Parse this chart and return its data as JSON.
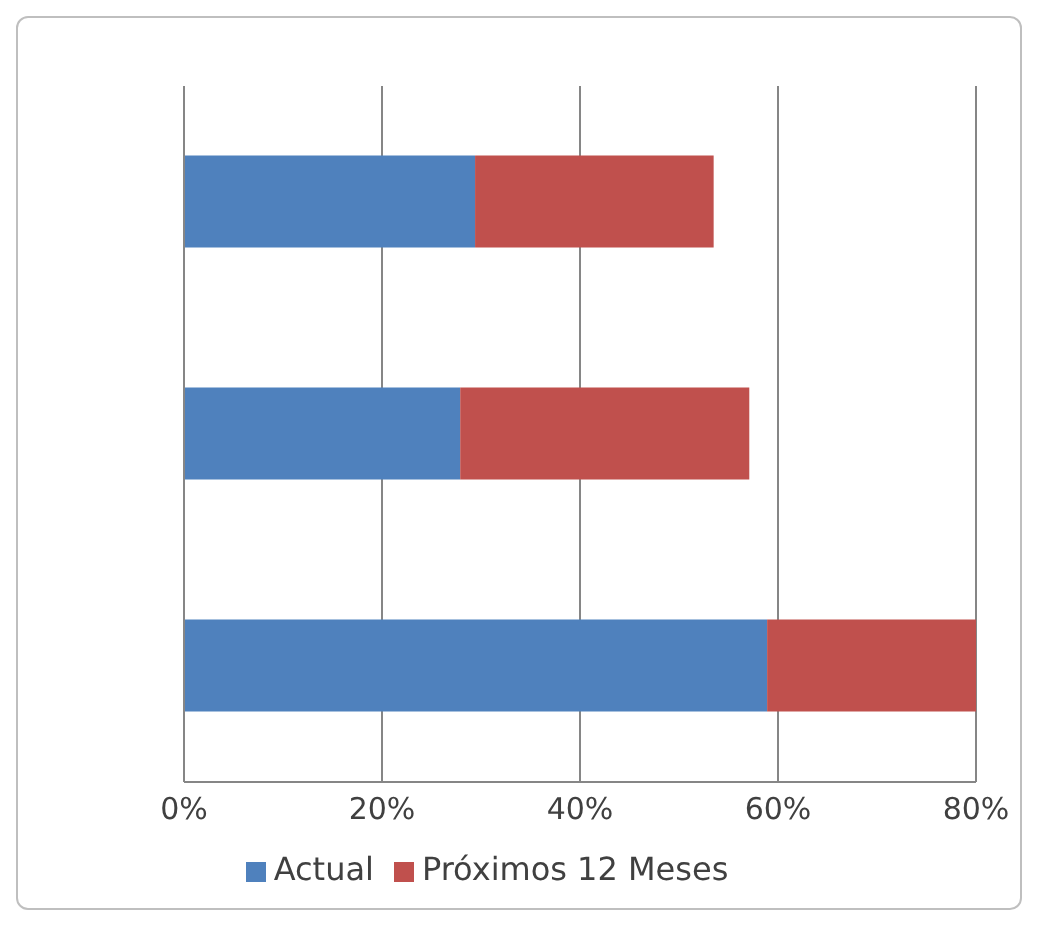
{
  "chart_data": {
    "type": "bar",
    "orientation": "horizontal",
    "stacked": true,
    "categories": [
      null,
      null,
      null
    ],
    "series": [
      {
        "name": "Actual",
        "color": "#4f81bd",
        "values": [
          29.4,
          27.9,
          58.9
        ]
      },
      {
        "name": "Próximos 12 Meses",
        "color": "#c0504d",
        "values": [
          24.1,
          29.2,
          21.1
        ]
      }
    ],
    "xlim": [
      0,
      80
    ],
    "xticks": [
      {
        "value": 0,
        "label": "0%"
      },
      {
        "value": 20,
        "label": "20%"
      },
      {
        "value": 40,
        "label": "40%"
      },
      {
        "value": 60,
        "label": "60%"
      },
      {
        "value": 80,
        "label": "80%"
      }
    ],
    "grid": "x",
    "legend": "bottom",
    "tick_labels": "x"
  }
}
